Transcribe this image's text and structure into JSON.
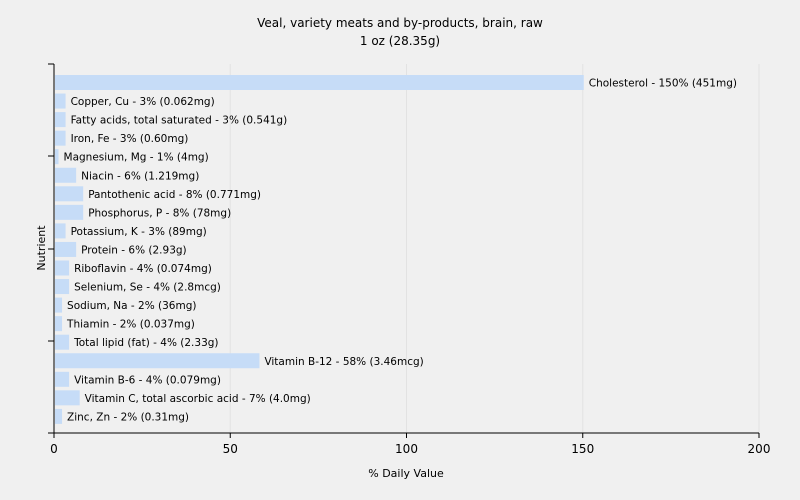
{
  "chart_data": {
    "type": "bar",
    "orientation": "horizontal",
    "title": "Veal, variety meats and by-products, brain, raw",
    "subtitle": "1 oz (28.35g)",
    "xlabel": "% Daily Value",
    "ylabel": "Nutrient",
    "xlim": [
      0,
      200
    ],
    "xticks": [
      0,
      50,
      100,
      150,
      200
    ],
    "grid": true,
    "bar_color": "#c6dcf7",
    "categories": [
      "Cholesterol",
      "Copper, Cu",
      "Fatty acids, total saturated",
      "Iron, Fe",
      "Magnesium, Mg",
      "Niacin",
      "Pantothenic acid",
      "Phosphorus, P",
      "Potassium, K",
      "Protein",
      "Riboflavin",
      "Selenium, Se",
      "Sodium, Na",
      "Thiamin",
      "Total lipid (fat)",
      "Vitamin B-12",
      "Vitamin B-6",
      "Vitamin C, total ascorbic acid",
      "Zinc, Zn"
    ],
    "values": [
      150,
      3,
      3,
      3,
      1,
      6,
      8,
      8,
      3,
      6,
      4,
      4,
      2,
      2,
      4,
      58,
      4,
      7,
      2
    ],
    "data_labels": [
      "Cholesterol - 150% (451mg)",
      "Copper, Cu - 3% (0.062mg)",
      "Fatty acids, total saturated - 3% (0.541g)",
      "Iron, Fe - 3% (0.60mg)",
      "Magnesium, Mg - 1% (4mg)",
      "Niacin - 6% (1.219mg)",
      "Pantothenic acid - 8% (0.771mg)",
      "Phosphorus, P - 8% (78mg)",
      "Potassium, K - 3% (89mg)",
      "Protein - 6% (2.93g)",
      "Riboflavin - 4% (0.074mg)",
      "Selenium, Se - 4% (2.8mcg)",
      "Sodium, Na - 2% (36mg)",
      "Thiamin - 2% (0.037mg)",
      "Total lipid (fat) - 4% (2.33g)",
      "Vitamin B-12 - 58% (3.46mcg)",
      "Vitamin B-6 - 4% (0.079mg)",
      "Vitamin C, total ascorbic acid - 7% (4.0mg)",
      "Zinc, Zn - 2% (0.31mg)"
    ]
  }
}
